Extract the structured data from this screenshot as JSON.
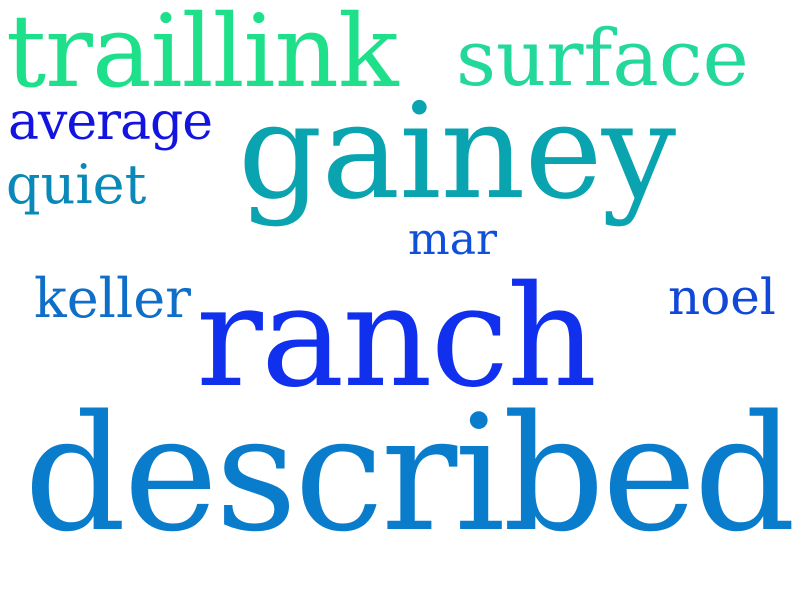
{
  "word_cloud": {
    "words": [
      {
        "id": "traillink",
        "text": "traillink",
        "color": "#1fe08a"
      },
      {
        "id": "surface",
        "text": "surface",
        "color": "#22d89a"
      },
      {
        "id": "average",
        "text": "average",
        "color": "#1414e0"
      },
      {
        "id": "gainey",
        "text": "gainey",
        "color": "#0aa3b0"
      },
      {
        "id": "quiet",
        "text": "quiet",
        "color": "#0a88b8"
      },
      {
        "id": "mar",
        "text": "mar",
        "color": "#1050d8"
      },
      {
        "id": "keller",
        "text": "keller",
        "color": "#0f6fc8"
      },
      {
        "id": "noel",
        "text": "noel",
        "color": "#1248d8"
      },
      {
        "id": "ranch",
        "text": "ranch",
        "color": "#1030ee"
      },
      {
        "id": "described",
        "text": "described",
        "color": "#0a7ccc"
      }
    ]
  }
}
